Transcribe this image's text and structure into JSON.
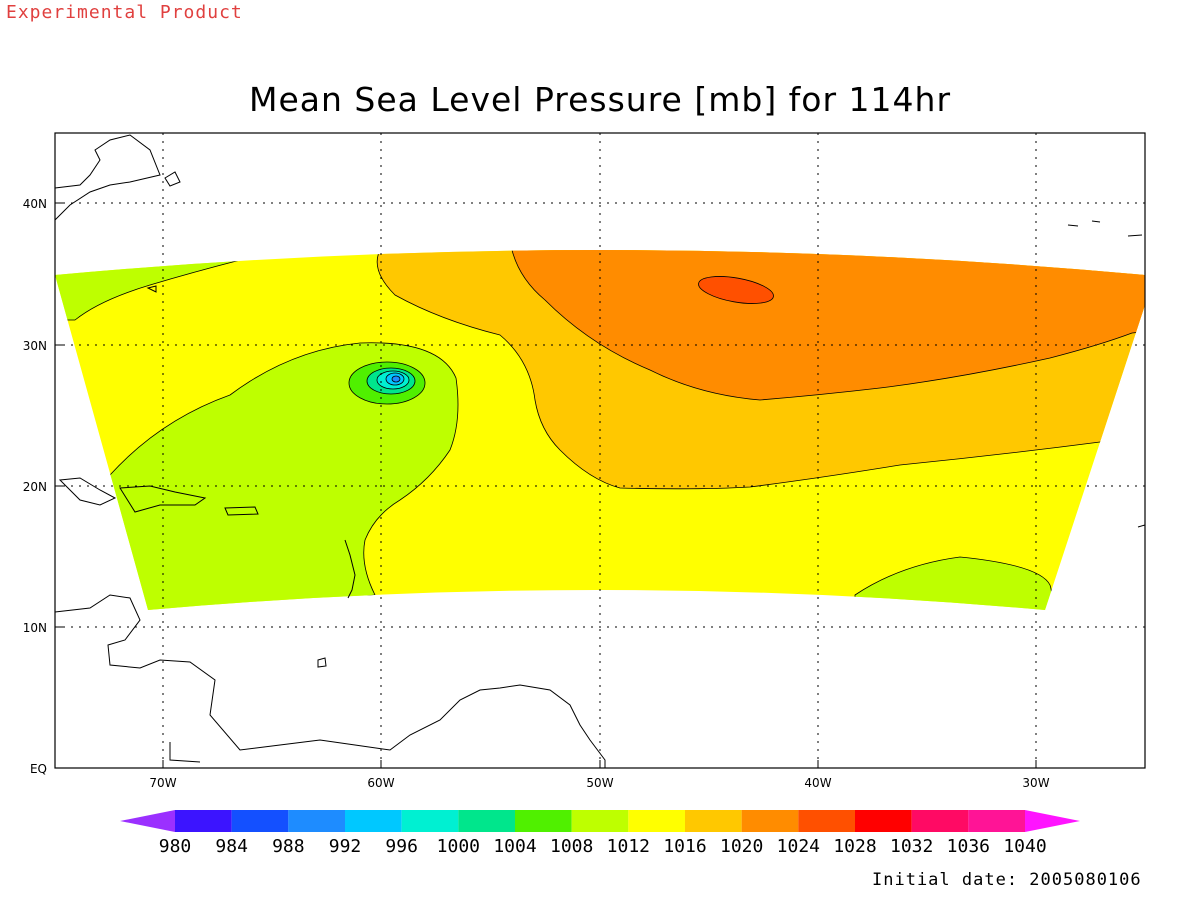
{
  "watermark": "Experimental Product",
  "title": "Mean Sea Level Pressure [mb] for 114hr",
  "axes": {
    "x_ticks": [
      "70W",
      "60W",
      "50W",
      "40W",
      "30W"
    ],
    "y_ticks": [
      "EQ",
      "10N",
      "20N",
      "30N",
      "40N"
    ]
  },
  "colorbar": {
    "levels": [
      "980",
      "984",
      "988",
      "992",
      "996",
      "1000",
      "1004",
      "1008",
      "1012",
      "1016",
      "1020",
      "1024",
      "1028",
      "1032",
      "1036",
      "1040"
    ],
    "colors": [
      "#9b30ff",
      "#3c14ff",
      "#1450ff",
      "#1e8cff",
      "#00c8ff",
      "#00f0d2",
      "#00e68c",
      "#50f000",
      "#beff00",
      "#ffff00",
      "#ffc800",
      "#ff8c00",
      "#ff5000",
      "#ff0000",
      "#ff0a64",
      "#ff1496",
      "#ff14ff"
    ]
  },
  "footer": "Initial date: 2005080106"
}
